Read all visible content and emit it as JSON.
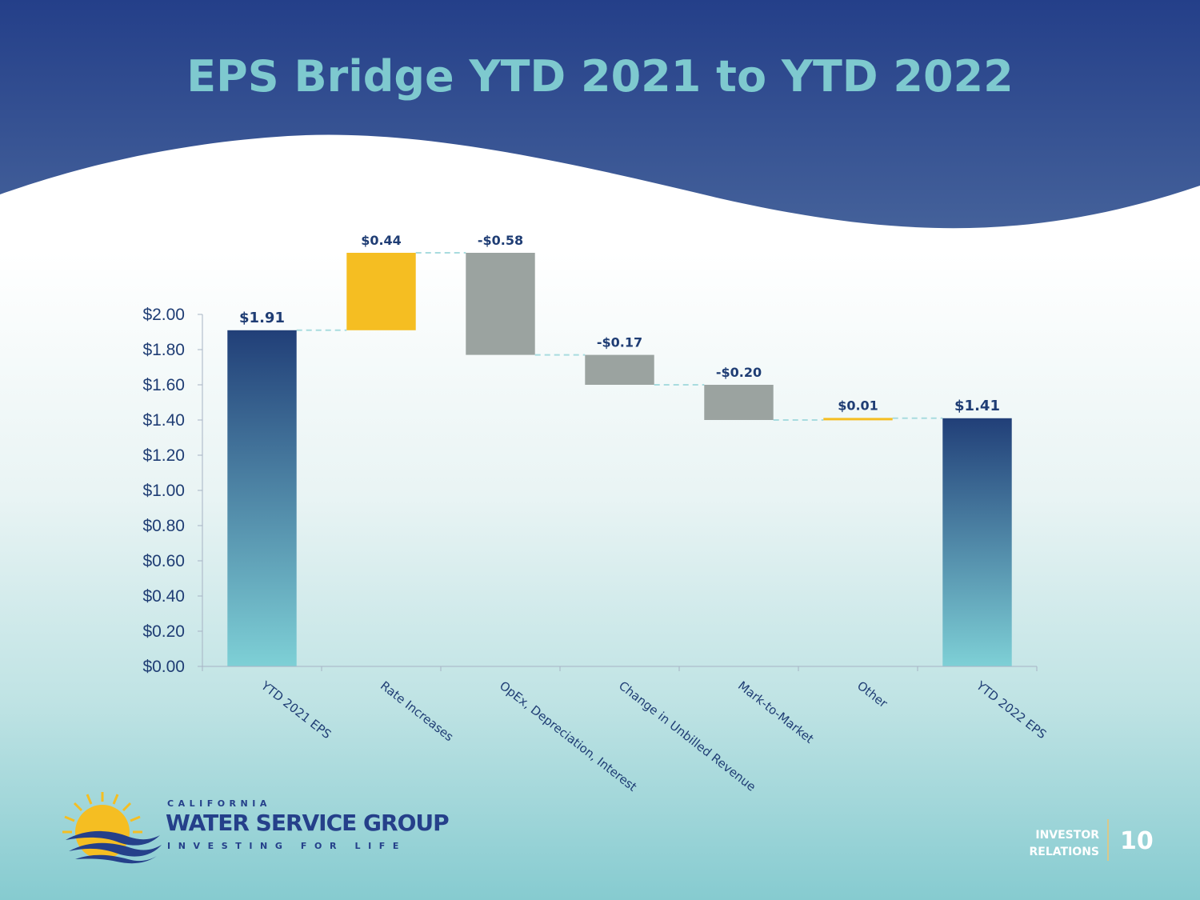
{
  "title": "EPS Bridge YTD 2021 to YTD 2022",
  "colors": {
    "increase": "#f5be22",
    "decrease": "#9ba3a0",
    "total_top": "#213f78",
    "total_bottom": "#7ed0d6",
    "connector": "#a8dcdf",
    "header": "#26418a"
  },
  "chart_data": {
    "type": "waterfall",
    "categories": [
      "YTD 2021 EPS",
      "Rate Increases",
      "OpEx, Depreciation, Interest",
      "Change in Unbilled Revenue",
      "Mark-to-Market",
      "Other",
      "YTD 2022 EPS"
    ],
    "values": [
      1.91,
      0.44,
      -0.58,
      -0.17,
      -0.2,
      0.01,
      1.41
    ],
    "kinds": [
      "total",
      "increase",
      "decrease",
      "decrease",
      "decrease",
      "increase",
      "total"
    ],
    "data_labels": [
      "$1.91",
      "$0.44",
      "-$0.58",
      "-$0.17",
      "-$0.20",
      "$0.01",
      "$1.41"
    ],
    "y_ticks": [
      "$0.00",
      "$0.20",
      "$0.40",
      "$0.60",
      "$0.80",
      "$1.00",
      "$1.20",
      "$1.40",
      "$1.60",
      "$1.80",
      "$2.00"
    ],
    "ylim": [
      0,
      2.0
    ],
    "grid": false,
    "legend": "none"
  },
  "logo": {
    "top": "CALIFORNIA",
    "main": "WATER SERVICE GROUP",
    "tagline": "INVESTING FOR LIFE"
  },
  "footer": {
    "ir_line1": "INVESTOR",
    "ir_line2": "RELATIONS",
    "page_number": "10"
  }
}
